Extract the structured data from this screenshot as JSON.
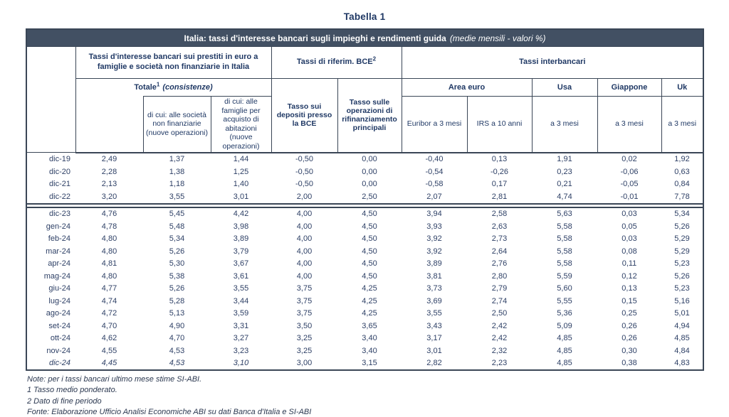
{
  "page_title": "Tabella 1",
  "table": {
    "title": {
      "main": "Italia: tassi d'interesse bancari sugli impieghi e rendimenti guida",
      "note": "(medie mensili - valori %)"
    },
    "groups": {
      "loans": "Tassi d'interesse bancari sui prestiti in euro a famiglie e società non finanziarie in Italia",
      "bce": "Tassi di riferim. BCE",
      "bce_sup": "2",
      "interbank": "Tassi interbancari"
    },
    "columns": {
      "totale": "Totale",
      "totale_sup": "1",
      "totale_note": "(consistenze)",
      "soc": "di cui: alle società non finanziarie (nuove operazioni)",
      "fam": "di cui: alle famiglie per acquisto di abitazioni (nuove operazioni)",
      "depositi": "Tasso sui depositi presso la BCE",
      "rifinanziamento": "Tasso sulle operazioni di rifinanziamento principali",
      "area_euro": "Area euro",
      "euribor": "Euribor a 3 mesi",
      "irs": "IRS a 10 anni",
      "usa": "Usa",
      "giappone": "Giappone",
      "uk": "Uk",
      "tre_mesi": "a 3 mesi"
    },
    "rows_block1": [
      {
        "label": "dic-19",
        "values": [
          "2,49",
          "1,37",
          "1,44",
          "-0,50",
          "0,00",
          "-0,40",
          "0,13",
          "1,91",
          "0,02",
          "1,92"
        ]
      },
      {
        "label": "dic-20",
        "values": [
          "2,28",
          "1,38",
          "1,25",
          "-0,50",
          "0,00",
          "-0,54",
          "-0,26",
          "0,23",
          "-0,06",
          "0,63"
        ]
      },
      {
        "label": "dic-21",
        "values": [
          "2,13",
          "1,18",
          "1,40",
          "-0,50",
          "0,00",
          "-0,58",
          "0,17",
          "0,21",
          "-0,05",
          "0,84"
        ]
      },
      {
        "label": "dic-22",
        "values": [
          "3,20",
          "3,55",
          "3,01",
          "2,00",
          "2,50",
          "2,07",
          "2,81",
          "4,74",
          "-0,01",
          "7,78"
        ]
      }
    ],
    "rows_block2": [
      {
        "label": "dic-23",
        "values": [
          "4,76",
          "5,45",
          "4,42",
          "4,00",
          "4,50",
          "3,94",
          "2,58",
          "5,63",
          "0,03",
          "5,34"
        ]
      },
      {
        "label": "gen-24",
        "values": [
          "4,78",
          "5,48",
          "3,98",
          "4,00",
          "4,50",
          "3,93",
          "2,63",
          "5,58",
          "0,05",
          "5,26"
        ]
      },
      {
        "label": "feb-24",
        "values": [
          "4,80",
          "5,34",
          "3,89",
          "4,00",
          "4,50",
          "3,92",
          "2,73",
          "5,58",
          "0,03",
          "5,29"
        ]
      },
      {
        "label": "mar-24",
        "values": [
          "4,80",
          "5,26",
          "3,79",
          "4,00",
          "4,50",
          "3,92",
          "2,64",
          "5,58",
          "0,08",
          "5,29"
        ]
      },
      {
        "label": "apr-24",
        "values": [
          "4,81",
          "5,30",
          "3,67",
          "4,00",
          "4,50",
          "3,89",
          "2,76",
          "5,58",
          "0,11",
          "5,23"
        ]
      },
      {
        "label": "mag-24",
        "values": [
          "4,80",
          "5,38",
          "3,61",
          "4,00",
          "4,50",
          "3,81",
          "2,80",
          "5,59",
          "0,12",
          "5,26"
        ]
      },
      {
        "label": "giu-24",
        "values": [
          "4,77",
          "5,26",
          "3,55",
          "3,75",
          "4,25",
          "3,73",
          "2,79",
          "5,60",
          "0,13",
          "5,23"
        ]
      },
      {
        "label": "lug-24",
        "values": [
          "4,74",
          "5,28",
          "3,44",
          "3,75",
          "4,25",
          "3,69",
          "2,74",
          "5,55",
          "0,15",
          "5,16"
        ]
      },
      {
        "label": "ago-24",
        "values": [
          "4,72",
          "5,13",
          "3,59",
          "3,75",
          "4,25",
          "3,55",
          "2,50",
          "5,36",
          "0,25",
          "5,01"
        ]
      },
      {
        "label": "set-24",
        "values": [
          "4,70",
          "4,90",
          "3,31",
          "3,50",
          "3,65",
          "3,43",
          "2,42",
          "5,09",
          "0,26",
          "4,94"
        ]
      },
      {
        "label": "ott-24",
        "values": [
          "4,62",
          "4,70",
          "3,27",
          "3,25",
          "3,40",
          "3,17",
          "2,42",
          "4,85",
          "0,26",
          "4,85"
        ]
      },
      {
        "label": "nov-24",
        "values": [
          "4,55",
          "4,53",
          "3,23",
          "3,25",
          "3,40",
          "3,01",
          "2,32",
          "4,85",
          "0,30",
          "4,84"
        ]
      },
      {
        "label": "dic-24",
        "values": [
          "4,45",
          "4,53",
          "3,10",
          "3,00",
          "3,15",
          "2,82",
          "2,23",
          "4,85",
          "0,38",
          "4,83"
        ],
        "italic_upto": 4
      }
    ]
  },
  "notes": [
    "Note: per i tassi bancari ultimo mese stime SI-ABI.",
    "1 Tasso medio ponderato.",
    "2 Dato di fine periodo",
    "Fonte: Elaborazione Ufficio Analisi Economiche ABI su dati Banca d'Italia e SI-ABI"
  ],
  "colors": {
    "header_bar_bg": "#425063",
    "header_text": "#1F3864",
    "body_text": "#2e4066",
    "border": "#3a4656"
  }
}
